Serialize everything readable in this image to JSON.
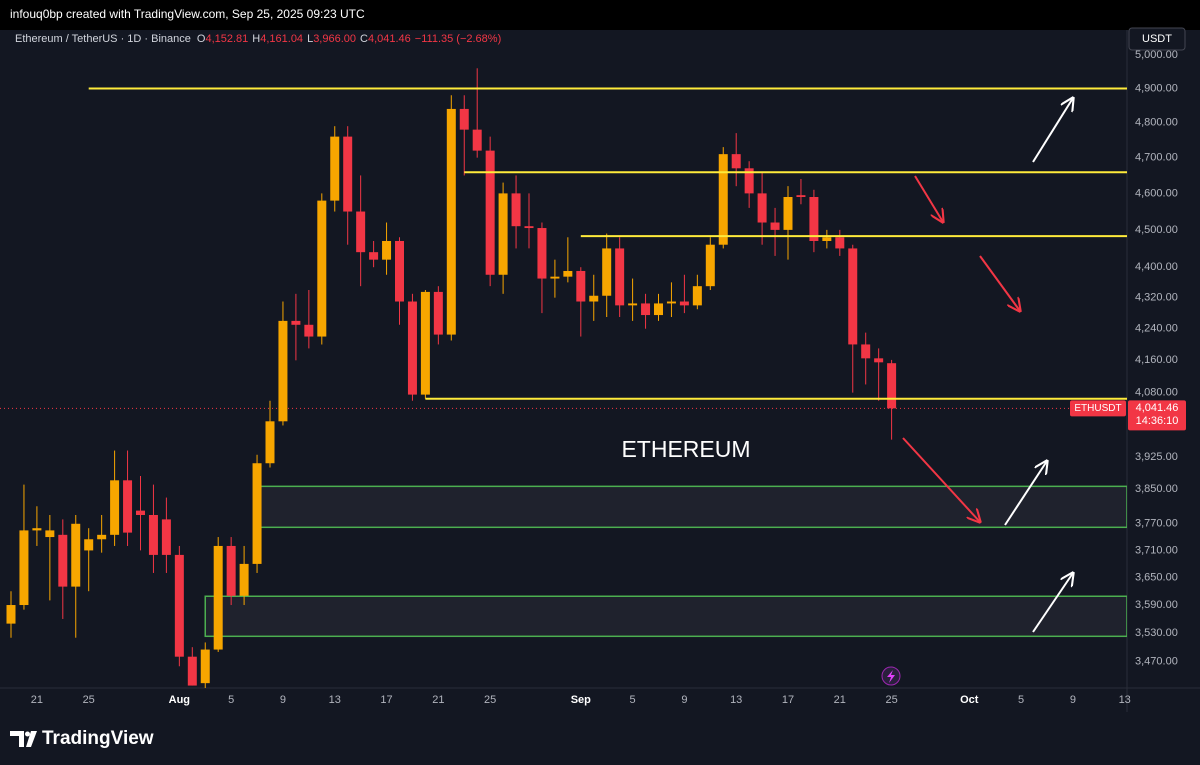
{
  "chart_data": {
    "type": "candlestick",
    "credit": "infouq0bp created with TradingView.com, Sep 25, 2025 09:23 UTC",
    "title": "Ethereum / TetherUS · 1D · Binance",
    "legend_values": [
      {
        "key": "O",
        "value": "4,152.81"
      },
      {
        "key": "H",
        "value": "4,161.04"
      },
      {
        "key": "L",
        "value": "3,966.00"
      },
      {
        "key": "C",
        "value": "4,041.46"
      }
    ],
    "change": "−111.35 (−2.68%)",
    "currency": "USDT",
    "annotation": "ETHEREUM",
    "brand": "TradingView",
    "categories": [
      null,
      null,
      "21",
      null,
      null,
      null,
      "25",
      null,
      null,
      null,
      null,
      null,
      null,
      "Aug",
      null,
      null,
      null,
      "5",
      null,
      null,
      null,
      "9",
      null,
      null,
      null,
      "13",
      null,
      null,
      null,
      "17",
      null,
      null,
      null,
      "21",
      null,
      null,
      null,
      "25",
      null,
      null,
      null,
      null,
      null,
      null,
      "Sep",
      null,
      null,
      null,
      "5",
      null,
      null,
      null,
      "9",
      null,
      null,
      null,
      "13",
      null,
      null,
      null,
      "17",
      null,
      null,
      null,
      "21",
      null,
      null,
      null,
      "25",
      null,
      null,
      null,
      null,
      null,
      "Oct",
      null,
      null,
      null,
      "5",
      null,
      null,
      null,
      "9",
      null,
      null,
      null,
      "13"
    ],
    "open": [
      3550,
      3590,
      3755,
      3740,
      3745,
      3630,
      3710,
      3735,
      3745,
      3870,
      3800,
      3790,
      3780,
      3700,
      3480,
      3425,
      3495,
      3720,
      3610,
      3680,
      3910,
      4010,
      4260,
      4250,
      4220,
      4580,
      4760,
      4550,
      4440,
      4420,
      4470,
      4310,
      4075,
      4335,
      4225,
      4840,
      4780,
      4720,
      4380,
      4600,
      4510,
      4505,
      4370,
      4375,
      4390,
      4310,
      4325,
      4450,
      4300,
      4305,
      4275,
      4305,
      4310,
      4300,
      4350,
      4460,
      4710,
      4670,
      4600,
      4520,
      4500,
      4595,
      4590,
      4470,
      4480,
      4450,
      4200,
      4165,
      4152.81,
      null,
      null,
      null,
      null,
      null,
      null,
      null,
      null,
      null,
      null,
      null,
      null,
      null,
      null,
      null,
      null,
      null,
      null
    ],
    "high": [
      3620,
      3860,
      3810,
      3790,
      3780,
      3790,
      3760,
      3790,
      3940,
      3940,
      3880,
      3860,
      3830,
      3720,
      3500,
      3510,
      3740,
      3740,
      3720,
      3930,
      4060,
      4310,
      4330,
      4340,
      4600,
      4790,
      4790,
      4650,
      4470,
      4520,
      4480,
      4330,
      4340,
      4350,
      4880,
      4880,
      4960,
      4760,
      4630,
      4650,
      4600,
      4520,
      4420,
      4480,
      4400,
      4380,
      4490,
      4480,
      4370,
      4330,
      4330,
      4360,
      4380,
      4380,
      4480,
      4730,
      4770,
      4690,
      4660,
      4560,
      4620,
      4640,
      4610,
      4500,
      4500,
      4460,
      4230,
      4190,
      4161.04,
      null,
      null,
      null,
      null,
      null,
      null,
      null,
      null,
      null,
      null,
      null,
      null,
      null,
      null,
      null,
      null,
      null,
      null
    ],
    "low": [
      3520,
      3580,
      3720,
      3600,
      3560,
      3520,
      3620,
      3705,
      3720,
      3720,
      3710,
      3660,
      3660,
      3460,
      3420,
      3415,
      3490,
      3590,
      3590,
      3660,
      3900,
      4000,
      4160,
      4190,
      4200,
      4550,
      4460,
      4350,
      4400,
      4380,
      4250,
      4060,
      4065,
      4200,
      4210,
      4650,
      4700,
      4350,
      4330,
      4450,
      4450,
      4280,
      4320,
      4360,
      4220,
      4260,
      4270,
      4270,
      4260,
      4240,
      4260,
      4270,
      4280,
      4290,
      4340,
      4450,
      4620,
      4560,
      4460,
      4430,
      4420,
      4570,
      4440,
      4450,
      4430,
      4080,
      4100,
      4060,
      3966,
      null,
      null,
      null,
      null,
      null,
      null,
      null,
      null,
      null,
      null,
      null,
      null,
      null,
      null,
      null,
      null,
      null,
      null
    ],
    "close": [
      3590,
      3755,
      3760,
      3755,
      3630,
      3770,
      3735,
      3745,
      3870,
      3750,
      3790,
      3700,
      3700,
      3480,
      3420,
      3495,
      3720,
      3610,
      3680,
      3910,
      4010,
      4260,
      4250,
      4220,
      4580,
      4760,
      4550,
      4440,
      4420,
      4470,
      4310,
      4075,
      4335,
      4225,
      4840,
      4780,
      4720,
      4380,
      4600,
      4510,
      4505,
      4370,
      4375,
      4390,
      4310,
      4325,
      4450,
      4300,
      4305,
      4275,
      4305,
      4310,
      4300,
      4350,
      4460,
      4710,
      4670,
      4600,
      4520,
      4500,
      4590,
      4590,
      4470,
      4480,
      4450,
      4200,
      4165,
      4155,
      4041.46,
      null,
      null,
      null,
      null,
      null,
      null,
      null,
      null,
      null,
      null,
      null,
      null,
      null,
      null,
      null,
      null,
      null,
      null
    ],
    "up_color": "#f7a600",
    "down_color": "#f23645",
    "log_scale": true,
    "grid": false,
    "ylim": [
      3415,
      5030
    ],
    "yticks": [
      {
        "value": 5000,
        "label": "5,000.00"
      },
      {
        "value": 4900,
        "label": "4,900.00"
      },
      {
        "value": 4800,
        "label": "4,800.00"
      },
      {
        "value": 4700,
        "label": "4,700.00"
      },
      {
        "value": 4600,
        "label": "4,600.00"
      },
      {
        "value": 4500,
        "label": "4,500.00"
      },
      {
        "value": 4400,
        "label": "4,400.00"
      },
      {
        "value": 4320,
        "label": "4,320.00"
      },
      {
        "value": 4240,
        "label": "4,240.00"
      },
      {
        "value": 4160,
        "label": "4,160.00"
      },
      {
        "value": 4080,
        "label": "4,080.00"
      },
      {
        "value": 3925,
        "label": "3,925.00"
      },
      {
        "value": 3850,
        "label": "3,850.00"
      },
      {
        "value": 3770,
        "label": "3,770.00"
      },
      {
        "value": 3710,
        "label": "3,710.00"
      },
      {
        "value": 3650,
        "label": "3,650.00"
      },
      {
        "value": 3590,
        "label": "3,590.00"
      },
      {
        "value": 3530,
        "label": "3,530.00"
      },
      {
        "value": 3470,
        "label": "3,470.00"
      }
    ],
    "price_tag": {
      "name": "ETHUSDT",
      "price": {
        "value": 4041.46,
        "label": "4,041.46"
      },
      "countdown": "14:36:10"
    },
    "hlines": [
      {
        "value": 4900,
        "start": 6
      },
      {
        "value": 4659,
        "start": 35
      },
      {
        "value": 4483,
        "start": 44
      },
      {
        "value": 4065,
        "start": 32
      }
    ],
    "zones": [
      {
        "top": 3856,
        "bottom": 3762,
        "start": 19
      },
      {
        "top": 3609,
        "bottom": 3523,
        "start": 15
      }
    ],
    "line_color": "#ffeb3b",
    "zone_color": "#4caf50"
  }
}
